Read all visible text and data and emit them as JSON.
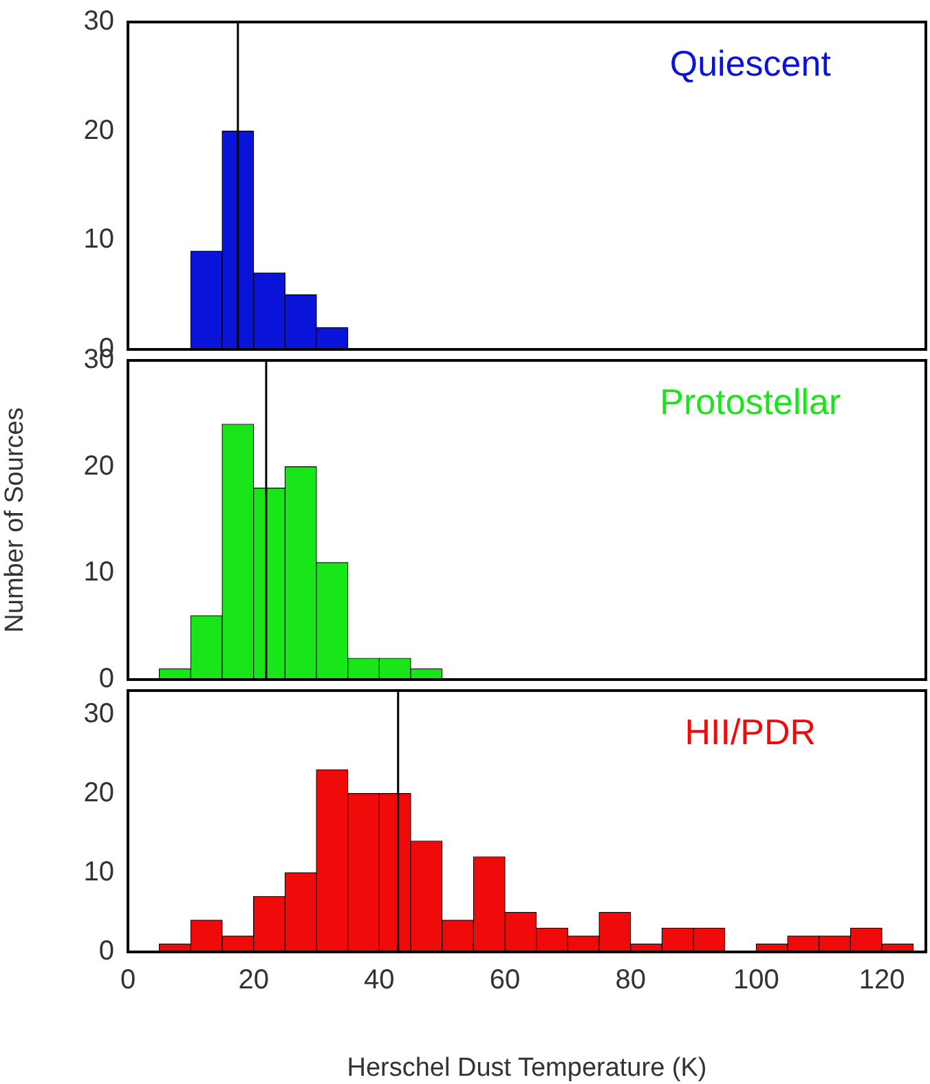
{
  "chart_data": [
    {
      "type": "histogram",
      "title": "Quiescent",
      "color": "#0a14d8",
      "bins": [
        10,
        15,
        20,
        25,
        30,
        35
      ],
      "values": [
        9,
        20,
        7,
        5,
        2
      ],
      "xlim": [
        0,
        127
      ],
      "xticks": [
        0,
        20,
        40,
        60,
        80,
        100,
        120
      ],
      "ylim": [
        0,
        30
      ],
      "yticks": [
        0,
        10,
        20,
        30
      ],
      "tick_labels": "y",
      "ref_lines": [
        {
          "axis": "x",
          "value": 17.5,
          "color": "#000000"
        }
      ]
    },
    {
      "type": "histogram",
      "title": "Protostellar",
      "ylabel": "Number of Sources",
      "color": "#19e619",
      "bins": [
        5,
        10,
        15,
        20,
        25,
        30,
        35,
        40,
        45,
        50
      ],
      "values": [
        1,
        6,
        24,
        18,
        20,
        11,
        2,
        2,
        1
      ],
      "xlim": [
        0,
        127
      ],
      "xticks": [
        0,
        20,
        40,
        60,
        80,
        100,
        120
      ],
      "ylim": [
        0,
        30
      ],
      "yticks": [
        0,
        10,
        20,
        30
      ],
      "tick_labels": "y",
      "ref_lines": [
        {
          "axis": "x",
          "value": 22,
          "color": "#000000"
        }
      ]
    },
    {
      "type": "histogram",
      "title": "HII/PDR",
      "xlabel": "Herschel Dust Temperature (K)",
      "color": "#f00a0a",
      "bins": [
        5,
        10,
        15,
        20,
        25,
        30,
        35,
        40,
        45,
        50,
        55,
        60,
        65,
        70,
        75,
        80,
        85,
        90,
        95,
        100,
        105,
        110,
        115,
        120,
        125
      ],
      "values": [
        1,
        4,
        2,
        7,
        10,
        23,
        20,
        20,
        14,
        4,
        12,
        5,
        3,
        2,
        5,
        1,
        3,
        3,
        0,
        1,
        2,
        2,
        3,
        1
      ],
      "xlim": [
        0,
        127
      ],
      "xticks": [
        0,
        20,
        40,
        60,
        80,
        100,
        120
      ],
      "ylim": [
        0,
        33
      ],
      "yticks": [
        0,
        10,
        20,
        30
      ],
      "ref_lines": [
        {
          "axis": "x",
          "value": 43,
          "color": "#000000"
        }
      ]
    }
  ]
}
